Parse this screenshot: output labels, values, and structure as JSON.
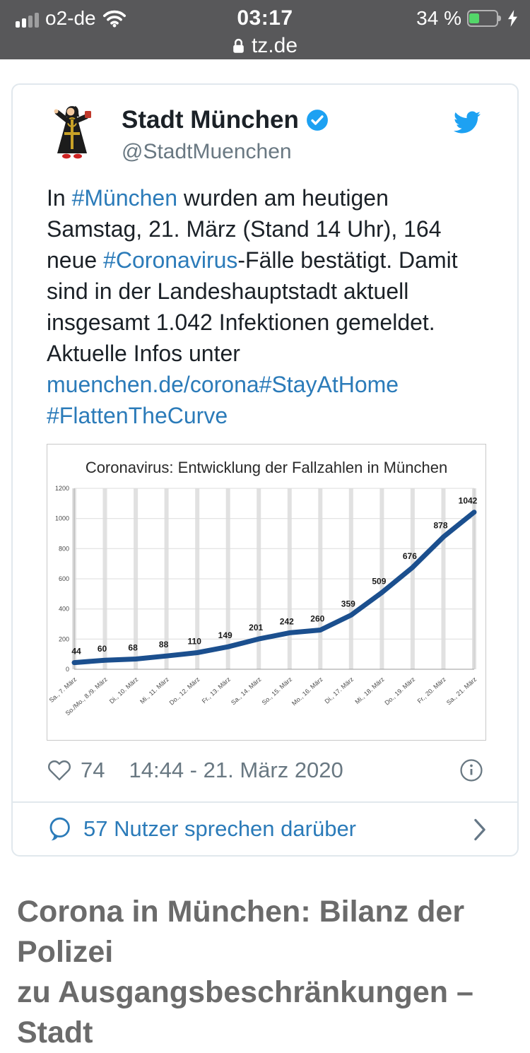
{
  "status_bar": {
    "carrier": "o2-de",
    "time": "03:17",
    "battery_percent": "34 %",
    "url": "tz.de"
  },
  "tweet": {
    "name": "Stadt München",
    "handle": "@StadtMuenchen",
    "text_segments": [
      {
        "t": "In ",
        "link": false
      },
      {
        "t": "#München",
        "link": true
      },
      {
        "t": " wurden am heutigen Samstag, 21. März (Stand 14 Uhr), 164 neue ",
        "link": false
      },
      {
        "t": "#Coronavirus",
        "link": true
      },
      {
        "t": "-Fälle bestätigt. Damit sind in der Landeshauptstadt aktuell insgesamt 1.042 Infektionen gemeldet. Aktuelle Infos unter ",
        "link": false
      },
      {
        "t": "muenchen.de/corona",
        "link": true
      },
      {
        "t": "#StayAtHome",
        "link": true
      },
      {
        "t": " ",
        "link": false
      },
      {
        "t": "#FlattenTheCurve",
        "link": true
      }
    ],
    "like_count": "74",
    "timestamp": "14:44 - 21. März 2020",
    "talk_label": "57 Nutzer sprechen darüber"
  },
  "chart_data": {
    "type": "line",
    "title": "Coronavirus: Entwicklung der Fallzahlen in München",
    "categories": [
      "Sa., 7. März",
      "So./Mo., 8./9. März",
      "Di., 10. März",
      "Mi., 11. März",
      "Do., 12. März",
      "Fr., 13. März",
      "Sa., 14. März",
      "So., 15. März",
      "Mo., 16. März",
      "Di., 17. März",
      "Mi., 18. März",
      "Do., 19. März",
      "Fr., 20. März",
      "Sa., 21. März"
    ],
    "values": [
      44,
      60,
      68,
      88,
      110,
      149,
      201,
      242,
      260,
      359,
      509,
      676,
      878,
      1042
    ],
    "xlabel": "",
    "ylabel": "",
    "ylim": [
      0,
      1200
    ],
    "ytick_step": 200,
    "grid": true,
    "legend": false,
    "line_color": "#1b4f8e"
  },
  "article": {
    "heading_line1": "Corona in München: Bilanz der Polizei",
    "heading_line2": "zu Ausgangsbeschränkungen – Stadt"
  },
  "colors": {
    "accent_blue": "#1da1f2",
    "link_blue": "#2b7bb9",
    "muted_gray": "#697882",
    "battery_green": "#53d769",
    "status_bar_bg": "#58585a"
  }
}
